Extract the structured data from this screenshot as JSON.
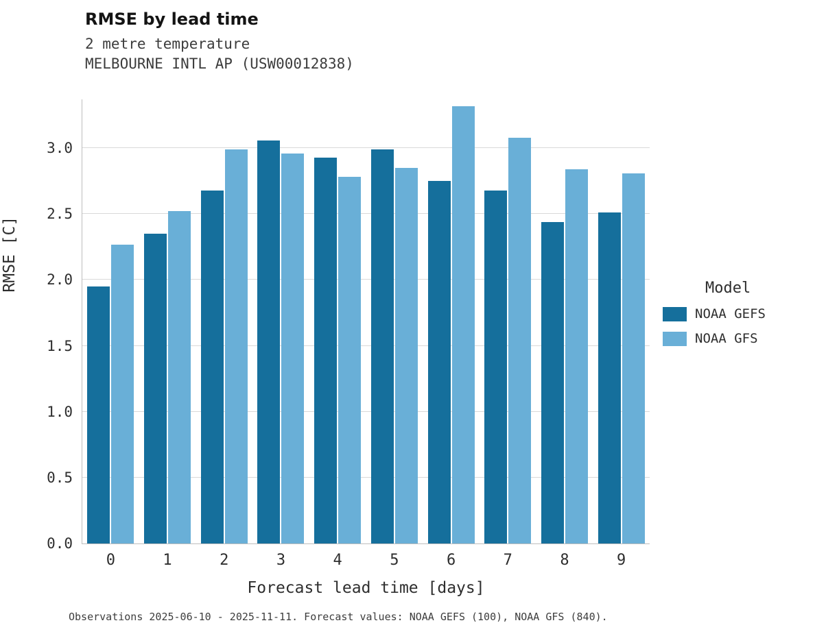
{
  "chart_data": {
    "type": "bar",
    "title": "RMSE by lead time",
    "subtitle": [
      "2 metre temperature",
      "MELBOURNE INTL AP (USW00012838)"
    ],
    "categories": [
      "0",
      "1",
      "2",
      "3",
      "4",
      "5",
      "6",
      "7",
      "8",
      "9"
    ],
    "series": [
      {
        "name": "NOAA GEFS",
        "color": "#156f9c",
        "values": [
          1.95,
          2.35,
          2.68,
          3.06,
          2.93,
          2.99,
          2.75,
          2.68,
          2.44,
          2.51
        ]
      },
      {
        "name": "NOAA GFS",
        "color": "#69afd7",
        "values": [
          2.27,
          2.52,
          2.99,
          2.96,
          2.78,
          2.85,
          3.32,
          3.08,
          2.84,
          2.81
        ]
      }
    ],
    "xlabel": "Forecast lead time [days]",
    "ylabel": "RMSE [C]",
    "ylim": [
      0,
      3.37
    ],
    "yticks": [
      0.0,
      0.5,
      1.0,
      1.5,
      2.0,
      2.5,
      3.0
    ],
    "grid": "horizontal",
    "legend_title": "Model",
    "legend_position": "right",
    "caption": "Observations 2025-06-10 - 2025-11-11. Forecast values: NOAA GEFS (100), NOAA GFS (840)."
  }
}
